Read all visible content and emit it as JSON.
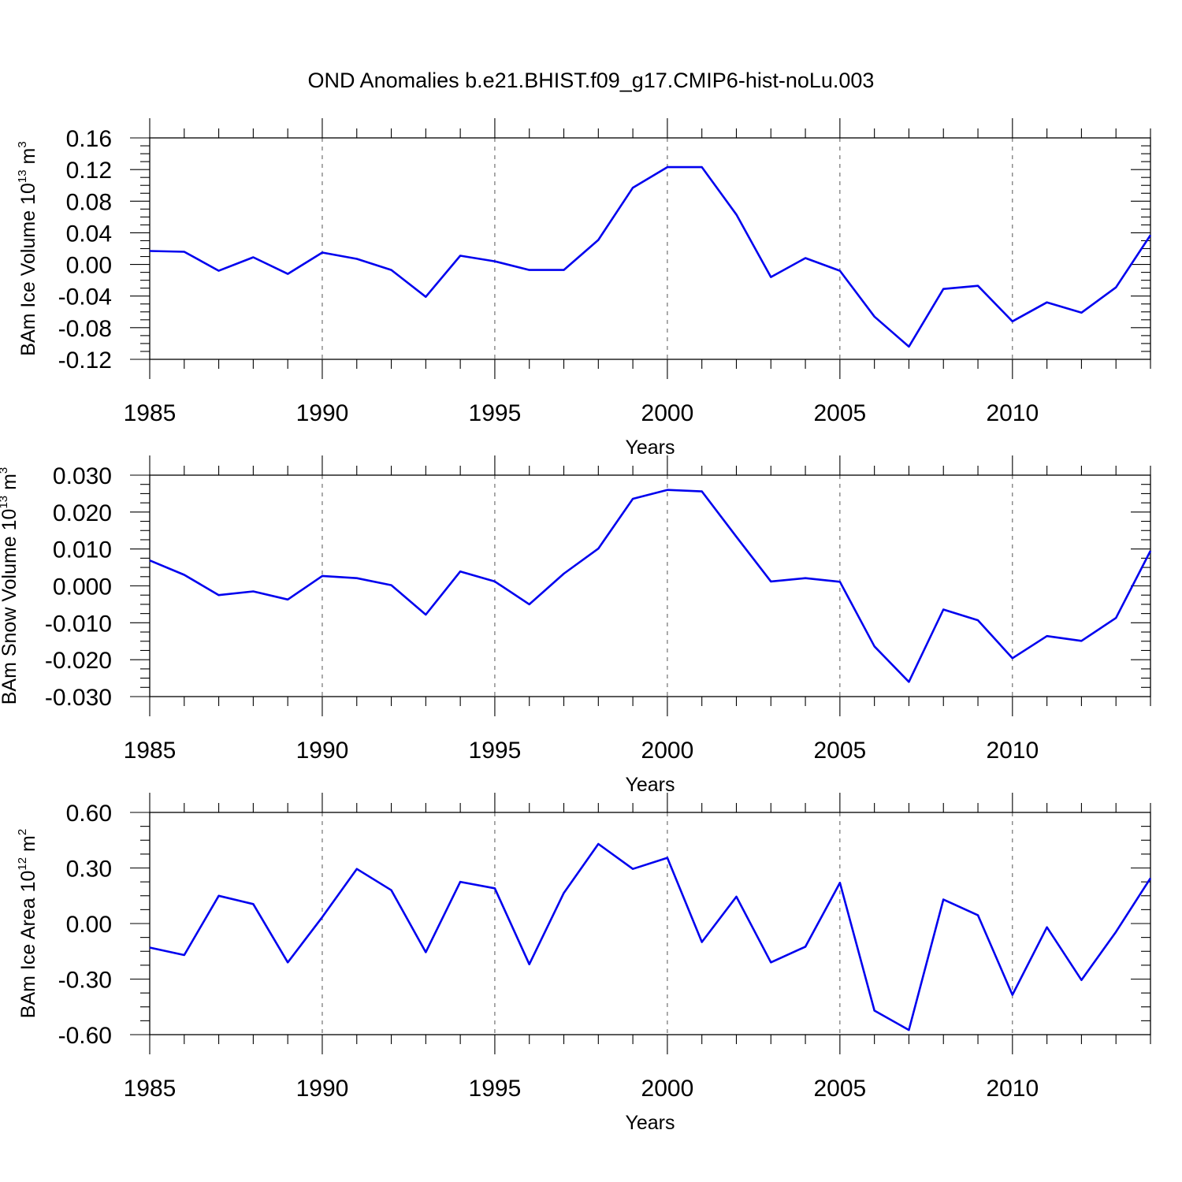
{
  "title": "OND Anomalies b.e21.BHIST.f09_g17.CMIP6-hist-noLu.003",
  "colors": {
    "series": "#0000ee",
    "axis": "#000000",
    "grid": "#555555"
  },
  "chart_data": [
    {
      "type": "line",
      "ylabel": "BAm Ice Volume 10",
      "ylabel_exp": "13",
      "ylabel_unit": " m",
      "ylabel_unit_exp": "3",
      "xlabel": "Years",
      "xlim": [
        1985,
        2014
      ],
      "ylim": [
        -0.12,
        0.16
      ],
      "grid": "vertical-dashed",
      "xticks": [
        "1985",
        "1990",
        "1995",
        "2000",
        "2005",
        "2010"
      ],
      "yticks": [
        "0.16",
        "0.12",
        "0.08",
        "0.04",
        "0.00",
        "-0.04",
        "-0.08",
        "-0.12"
      ],
      "x": [
        1985,
        1986,
        1987,
        1988,
        1989,
        1990,
        1991,
        1992,
        1993,
        1994,
        1995,
        1996,
        1997,
        1998,
        1999,
        2000,
        2001,
        2002,
        2003,
        2004,
        2005,
        2006,
        2007,
        2008,
        2009,
        2010,
        2011,
        2012,
        2013,
        2014
      ],
      "values": [
        0.017,
        0.016,
        -0.008,
        0.009,
        -0.012,
        0.015,
        0.007,
        -0.007,
        -0.041,
        0.011,
        0.004,
        -0.007,
        -0.007,
        0.031,
        0.097,
        0.123,
        0.123,
        0.063,
        -0.016,
        0.008,
        -0.008,
        -0.066,
        -0.104,
        -0.031,
        -0.027,
        -0.072,
        -0.048,
        -0.061,
        -0.029,
        0.037
      ]
    },
    {
      "type": "line",
      "ylabel": "BAm Snow Volume 10",
      "ylabel_exp": "13",
      "ylabel_unit": " m",
      "ylabel_unit_exp": "3",
      "xlabel": "Years",
      "xlim": [
        1985,
        2014
      ],
      "ylim": [
        -0.03,
        0.03
      ],
      "grid": "vertical-dashed",
      "xticks": [
        "1985",
        "1990",
        "1995",
        "2000",
        "2005",
        "2010"
      ],
      "yticks": [
        "0.030",
        "0.020",
        "0.010",
        "0.000",
        "-0.010",
        "-0.020",
        "-0.030"
      ],
      "x": [
        1985,
        1986,
        1987,
        1988,
        1989,
        1990,
        1991,
        1992,
        1993,
        1994,
        1995,
        1996,
        1997,
        1998,
        1999,
        2000,
        2001,
        2002,
        2003,
        2004,
        2005,
        2006,
        2007,
        2008,
        2009,
        2010,
        2011,
        2012,
        2013,
        2014
      ],
      "values": [
        0.0069,
        0.003,
        -0.0025,
        -0.0015,
        -0.0037,
        0.0027,
        0.0021,
        0.0002,
        -0.0078,
        0.0039,
        0.0012,
        -0.005,
        0.0033,
        0.0101,
        0.0236,
        0.026,
        0.0256,
        0.0133,
        0.0012,
        0.0021,
        0.0011,
        -0.0164,
        -0.026,
        -0.0064,
        -0.0093,
        -0.0196,
        -0.0136,
        -0.0149,
        -0.0087,
        0.0095
      ]
    },
    {
      "type": "line",
      "ylabel": "BAm Ice Area 10",
      "ylabel_exp": "12",
      "ylabel_unit": " m",
      "ylabel_unit_exp": "2",
      "xlabel": "Years",
      "xlim": [
        1985,
        2014
      ],
      "ylim": [
        -0.6,
        0.6
      ],
      "grid": "vertical-dashed",
      "xticks": [
        "1985",
        "1990",
        "1995",
        "2000",
        "2005",
        "2010"
      ],
      "yticks": [
        "0.60",
        "0.30",
        "0.00",
        "-0.30",
        "-0.60"
      ],
      "x": [
        1985,
        1986,
        1987,
        1988,
        1989,
        1990,
        1991,
        1992,
        1993,
        1994,
        1995,
        1996,
        1997,
        1998,
        1999,
        2000,
        2001,
        2002,
        2003,
        2004,
        2005,
        2006,
        2007,
        2008,
        2009,
        2010,
        2011,
        2012,
        2013,
        2014
      ],
      "values": [
        -0.13,
        -0.17,
        0.15,
        0.105,
        -0.21,
        0.035,
        0.295,
        0.18,
        -0.155,
        0.225,
        0.19,
        -0.22,
        0.165,
        0.43,
        0.295,
        0.355,
        -0.1,
        0.145,
        -0.21,
        -0.125,
        0.22,
        -0.47,
        -0.575,
        0.13,
        0.045,
        -0.385,
        -0.02,
        -0.305,
        -0.045,
        0.245
      ]
    }
  ]
}
